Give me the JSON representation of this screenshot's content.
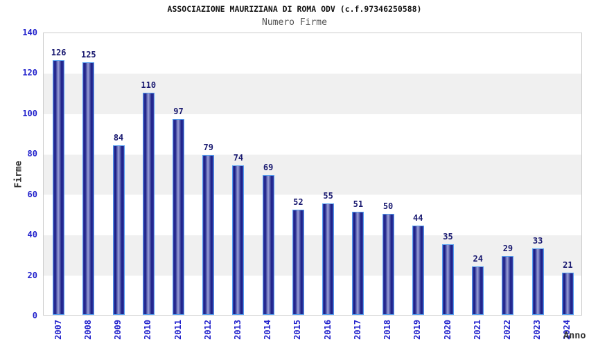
{
  "chart_data": {
    "type": "bar",
    "title": "ASSOCIAZIONE MAURIZIANA DI ROMA ODV (c.f.97346250588)",
    "subtitle": "Numero Firme",
    "xlabel": "Anno",
    "ylabel": "Firme",
    "categories": [
      "2007",
      "2008",
      "2009",
      "2010",
      "2011",
      "2012",
      "2013",
      "2014",
      "2015",
      "2016",
      "2017",
      "2018",
      "2019",
      "2020",
      "2021",
      "2022",
      "2023",
      "2024"
    ],
    "values": [
      126,
      125,
      84,
      110,
      97,
      79,
      74,
      69,
      52,
      55,
      51,
      50,
      44,
      35,
      24,
      29,
      33,
      21
    ],
    "ylim": [
      0,
      140
    ],
    "yticks": [
      0,
      20,
      40,
      60,
      80,
      100,
      120,
      140
    ],
    "grid": "alternating-horizontal-bands",
    "legend": "none",
    "colors": {
      "bar_edge_mid": "#3a40a6",
      "bar_dark": "#161b85",
      "bar_highlight": "#9ba1d8",
      "bar_border": "#55a0f0",
      "axis_tick_label": "#2222cc",
      "value_label": "#191970",
      "title": "#111111",
      "subtitle": "#555555",
      "axis_title": "#333333",
      "band_gray": "#f0f0f0",
      "plot_border": "#cccccc",
      "background": "#ffffff"
    }
  }
}
